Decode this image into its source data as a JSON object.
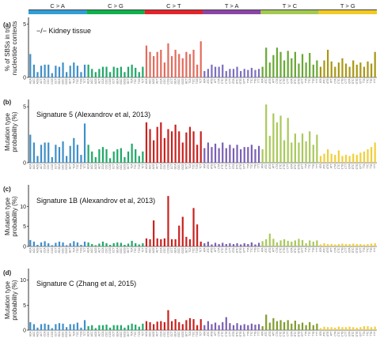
{
  "mutation_classes": [
    {
      "label": "C > A",
      "color": "#2f9fd8"
    },
    {
      "label": "C > G",
      "color": "#0fb14f"
    },
    {
      "label": "C > T",
      "color": "#e6232a"
    },
    {
      "label": "T > A",
      "color": "#8a45a8"
    },
    {
      "label": "T > C",
      "color": "#a3c94f"
    },
    {
      "label": "T > G",
      "color": "#f2ca22"
    }
  ],
  "panel_colors": [
    [
      "#3f8fc9",
      "#1fa868",
      "#e36b5c",
      "#7b6fc0",
      "#67a832",
      "#a99714"
    ],
    [
      "#3f8fc9",
      "#1fa868",
      "#c9221f",
      "#7b5fb5",
      "#a9c95a",
      "#f0cf3a"
    ],
    [
      "#3f8fc9",
      "#1fa868",
      "#c9221f",
      "#7b5fb5",
      "#a9c95a",
      "#f0cf3a"
    ],
    [
      "#3f8fc9",
      "#1fa868",
      "#c9221f",
      "#7b5fb5",
      "#7f9b2e",
      "#f0cf3a"
    ]
  ],
  "context_labels": [
    [
      "ACA",
      "ACC",
      "ACG",
      "ACT",
      "CCA",
      "CCC",
      "CCG",
      "CCT",
      "GCA",
      "GCC",
      "GCG",
      "GCT",
      "TCA",
      "TCC",
      "TCG",
      "TCT"
    ],
    [
      "ACA",
      "ACC",
      "ACG",
      "ACT",
      "CCA",
      "CCC",
      "CCG",
      "CCT",
      "GCA",
      "GCC",
      "GCG",
      "GCT",
      "TCA",
      "TCC",
      "TCG",
      "TCT"
    ],
    [
      "ACA",
      "ACC",
      "ACG",
      "ACT",
      "CCA",
      "CCC",
      "CCG",
      "CCT",
      "GCA",
      "GCC",
      "GCG",
      "GCT",
      "TCA",
      "TCC",
      "TCG",
      "TCT"
    ],
    [
      "ATA",
      "ATC",
      "ATG",
      "ATT",
      "CTA",
      "CTC",
      "CTG",
      "CTT",
      "GTA",
      "GTC",
      "GTG",
      "GTT",
      "TTA",
      "TTC",
      "TTG",
      "TTT"
    ],
    [
      "ATA",
      "ATC",
      "ATG",
      "ATT",
      "CTA",
      "CTC",
      "CTG",
      "CTT",
      "GTA",
      "GTC",
      "GTG",
      "GTT",
      "TTA",
      "TTC",
      "TTG",
      "TTT"
    ],
    [
      "ATA",
      "ATC",
      "ATG",
      "ATT",
      "CTA",
      "CTC",
      "CTG",
      "CTT",
      "GTA",
      "GTC",
      "GTG",
      "GTT",
      "TTA",
      "TTC",
      "TTG",
      "TTT"
    ]
  ],
  "chart_data": [
    {
      "type": "bar",
      "panel": "(a)",
      "title": "−/− Kidney tissue",
      "ylabel": "% of SBSs in tri-nucleotide contexts",
      "yticks": [
        0,
        5
      ],
      "ylim": [
        0,
        5.5
      ],
      "values": [
        2.2,
        1.2,
        0.5,
        1.1,
        1.2,
        1.2,
        0.4,
        1.1,
        1.0,
        1.4,
        0.5,
        1.1,
        1.4,
        1.1,
        0.5,
        1.2,
        1.2,
        0.8,
        0.5,
        0.8,
        1.0,
        1.0,
        0.5,
        1.0,
        0.9,
        1.0,
        0.5,
        1.0,
        1.2,
        0.9,
        0.5,
        1.0,
        3.0,
        2.4,
        2.0,
        2.4,
        2.6,
        1.4,
        3.2,
        2.0,
        2.6,
        2.2,
        1.8,
        2.4,
        2.2,
        2.6,
        1.2,
        3.4,
        0.6,
        0.8,
        1.2,
        1.0,
        1.0,
        1.2,
        0.6,
        0.8,
        0.8,
        1.0,
        0.6,
        0.8,
        0.7,
        0.9,
        0.7,
        0.8,
        1.0,
        2.8,
        1.4,
        2.1,
        2.8,
        2.4,
        1.6,
        2.5,
        1.8,
        2.4,
        1.3,
        2.2,
        1.4,
        2.3,
        1.2,
        1.6,
        1.0,
        1.6,
        2.6,
        1.5,
        1.0,
        1.4,
        1.8,
        1.3,
        1.0,
        1.6,
        1.2,
        1.4,
        1.0,
        1.5,
        1.3,
        2.4
      ]
    },
    {
      "type": "bar",
      "panel": "(b)",
      "title": "Signature 5 (Alexandrov et al, 2013)",
      "ylabel": "Mutation type probability (%)",
      "yticks": [
        0,
        5
      ],
      "ylim": [
        0,
        5.5
      ],
      "values": [
        2.5,
        1.8,
        0.6,
        1.6,
        1.8,
        1.8,
        0.5,
        1.6,
        1.4,
        1.9,
        0.6,
        1.5,
        2.2,
        1.6,
        0.7,
        3.5,
        1.6,
        1.0,
        0.5,
        1.2,
        1.4,
        1.2,
        0.4,
        1.0,
        1.2,
        1.3,
        0.5,
        1.0,
        1.7,
        1.2,
        0.6,
        1.0,
        3.6,
        3.0,
        2.0,
        3.2,
        3.6,
        2.2,
        3.0,
        2.8,
        3.4,
        2.8,
        1.8,
        2.7,
        3.2,
        2.8,
        1.6,
        2.8,
        1.3,
        1.8,
        1.4,
        1.7,
        1.3,
        1.8,
        1.3,
        1.6,
        1.3,
        1.6,
        1.2,
        1.4,
        1.4,
        1.6,
        1.2,
        1.5,
        1.2,
        5.2,
        2.4,
        4.4,
        3.6,
        4.2,
        2.0,
        4.0,
        1.8,
        2.6,
        1.8,
        2.6,
        1.9,
        2.8,
        1.6,
        2.5,
        0.6,
        0.8,
        1.2,
        0.8,
        0.7,
        1.1,
        0.6,
        0.7,
        0.6,
        0.8,
        0.7,
        0.9,
        1.0,
        1.2,
        1.4,
        1.8
      ]
    },
    {
      "type": "bar",
      "panel": "(c)",
      "title": "Signature 1B (Alexandrov et al, 2013)",
      "ylabel": "Mutation type probability (%)",
      "yticks": [
        0,
        5,
        10
      ],
      "ylim": [
        0,
        15
      ],
      "values": [
        1.6,
        1.2,
        0.4,
        1.0,
        1.3,
        0.8,
        0.3,
        0.9,
        1.2,
        1.0,
        0.3,
        0.8,
        1.3,
        1.0,
        0.4,
        1.2,
        1.0,
        0.6,
        0.3,
        0.7,
        1.2,
        0.8,
        0.4,
        0.8,
        1.0,
        0.9,
        0.4,
        0.7,
        1.4,
        0.8,
        0.5,
        0.8,
        2.0,
        1.8,
        6.5,
        2.0,
        1.8,
        2.0,
        12.6,
        1.8,
        1.8,
        5.2,
        7.4,
        2.4,
        1.8,
        9.6,
        5.5,
        1.2,
        0.8,
        1.2,
        0.5,
        0.9,
        0.6,
        0.9,
        0.6,
        0.8,
        0.6,
        0.8,
        0.5,
        0.8,
        0.6,
        1.0,
        0.5,
        0.9,
        1.3,
        1.8,
        3.2,
        1.9,
        1.0,
        1.5,
        1.8,
        1.4,
        1.2,
        1.5,
        1.9,
        1.6,
        0.8,
        1.5,
        1.2,
        1.5,
        0.5,
        0.8,
        0.6,
        0.6,
        0.5,
        0.6,
        0.7,
        0.6,
        0.6,
        0.7,
        0.6,
        0.6,
        0.5,
        0.6,
        0.7,
        0.8
      ]
    },
    {
      "type": "bar",
      "panel": "(d)",
      "title": "Signature C (Zhang et al, 2015)",
      "ylabel": "Mutation type probability (%)",
      "yticks": [
        0,
        5,
        10
      ],
      "ylim": [
        0,
        12
      ],
      "values": [
        1.6,
        1.2,
        0.5,
        1.2,
        1.3,
        1.1,
        0.4,
        1.2,
        1.4,
        1.3,
        0.6,
        1.2,
        1.2,
        1.5,
        0.5,
        2.0,
        0.8,
        1.0,
        0.4,
        1.0,
        1.0,
        1.1,
        0.5,
        1.0,
        1.0,
        1.0,
        0.5,
        1.0,
        1.3,
        1.1,
        0.7,
        1.3,
        1.8,
        1.6,
        1.2,
        1.7,
        1.8,
        1.6,
        4.0,
        1.8,
        2.2,
        1.6,
        1.2,
        2.0,
        2.4,
        2.2,
        1.0,
        2.2,
        1.0,
        1.8,
        1.2,
        1.5,
        1.0,
        1.6,
        2.6,
        1.4,
        1.0,
        1.4,
        1.0,
        1.2,
        1.0,
        1.3,
        1.1,
        1.2,
        0.8,
        3.1,
        1.5,
        2.4,
        1.8,
        2.0,
        1.6,
        2.0,
        1.3,
        1.9,
        1.2,
        1.5,
        1.0,
        1.6,
        1.0,
        1.3,
        0.4,
        0.7,
        0.6,
        0.6,
        0.5,
        0.7,
        0.6,
        0.6,
        0.7,
        0.6,
        0.5,
        0.6,
        0.8,
        0.8,
        0.6,
        0.7
      ]
    }
  ]
}
